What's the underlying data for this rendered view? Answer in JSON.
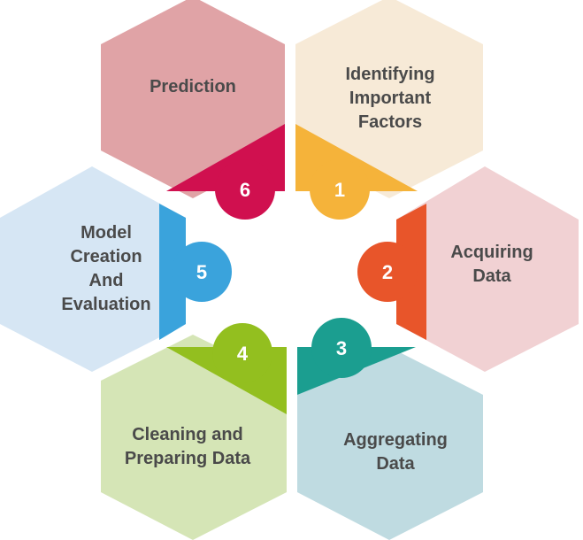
{
  "steps": [
    {
      "number": "1",
      "lines": [
        "Identifying",
        "Important",
        "Factors"
      ],
      "fill": "#f7ead7",
      "accent": "#f5b33a"
    },
    {
      "number": "2",
      "lines": [
        "Acquiring",
        "Data"
      ],
      "fill": "#f1d1d3",
      "accent": "#e8552a"
    },
    {
      "number": "3",
      "lines": [
        "Aggregating",
        "Data"
      ],
      "fill": "#bfdbe1",
      "accent": "#1b9e90"
    },
    {
      "number": "4",
      "lines": [
        "Cleaning and",
        "Preparing Data"
      ],
      "fill": "#d5e5b6",
      "accent": "#93bf1f"
    },
    {
      "number": "5",
      "lines": [
        "Model",
        "Creation",
        "And",
        "Evaluation"
      ],
      "fill": "#d6e6f4",
      "accent": "#3aa3dc"
    },
    {
      "number": "6",
      "lines": [
        "Prediction"
      ],
      "fill": "#e0a3a6",
      "accent": "#d0104f"
    }
  ]
}
